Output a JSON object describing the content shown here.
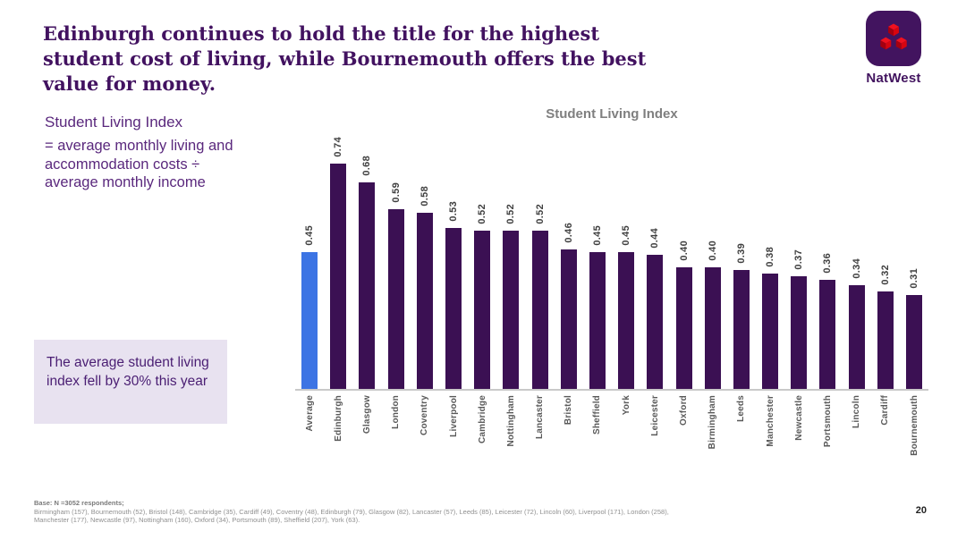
{
  "slide": {
    "title": "Edinburgh continues to hold the title for the highest student cost of living, while Bournemouth offers the best value for money.",
    "page_number": "20"
  },
  "brand": {
    "name": "NatWest",
    "logo_background": "#42145F",
    "logo_cube_red": "#E8081C",
    "accent_purple": "#5A287D"
  },
  "sidebar": {
    "definition_title": "Student Living Index",
    "definition_body": "= average monthly living and accommodation costs ÷ average monthly income",
    "callout_text": "The average student living index fell by 30% this year",
    "callout_background": "#E8E2F0"
  },
  "footer": {
    "base_line": "Base: N =3052 respondents;",
    "sample_line_1": "Birmingham (157),  Bournemouth (52), Bristol (148), Cambridge (35), Cardiff (49), Coventry (48),  Edinburgh (79), Glasgow (82), Lancaster (57), Leeds (85), Leicester (72), Lincoln (60), Liverpool (171), London (258),",
    "sample_line_2": "Manchester (177), Newcastle (97), Nottingham (160), Oxford (34), Portsmouth (89), Sheffield (207), York (63)."
  },
  "chart_data": {
    "type": "bar",
    "title": "Student Living Index",
    "categories": [
      "Average",
      "Edinburgh",
      "Glasgow",
      "London",
      "Coventry",
      "Liverpool",
      "Cambridge",
      "Nottingham",
      "Lancaster",
      "Bristol",
      "Sheffield",
      "York",
      "Leicester",
      "Oxford",
      "Birmingham",
      "Leeds",
      "Manchester",
      "Newcastle",
      "Portsmouth",
      "Lincoln",
      "Cardiff",
      "Bournemouth"
    ],
    "values": [
      0.45,
      0.74,
      0.68,
      0.59,
      0.58,
      0.53,
      0.52,
      0.52,
      0.52,
      0.46,
      0.45,
      0.45,
      0.44,
      0.4,
      0.4,
      0.39,
      0.38,
      0.37,
      0.36,
      0.34,
      0.32,
      0.31
    ],
    "value_label_decimals": 2,
    "xlabel": "",
    "ylabel": "",
    "ylim": [
      0,
      0.8
    ],
    "grid": false,
    "legend": "none",
    "bar_colors": {
      "default": "#3B1053",
      "highlight": "#3C74E4",
      "highlight_index": 0
    },
    "value_label_color": "#3F3F3F",
    "axis_label_color": "#595959",
    "title_color": "#7F7F7F"
  }
}
